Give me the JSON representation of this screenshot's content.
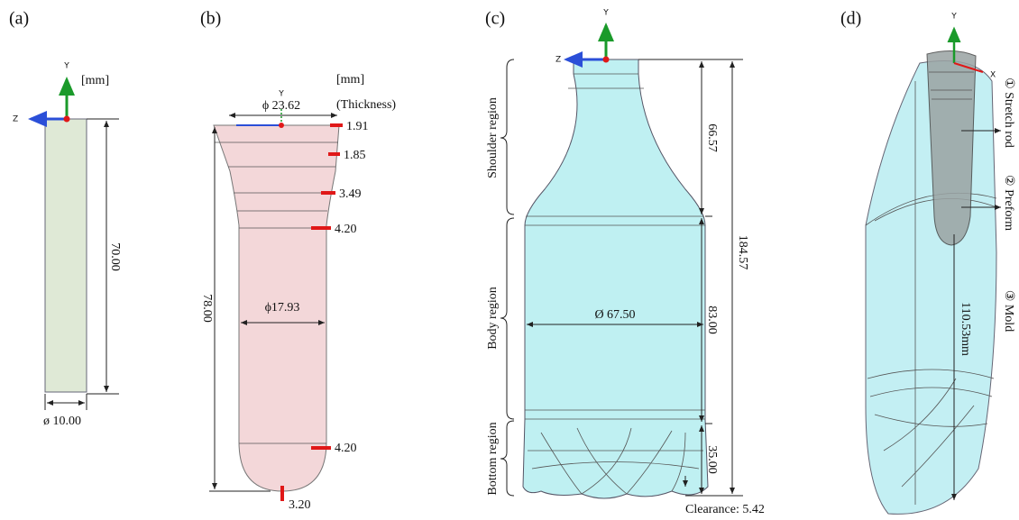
{
  "panels": [
    {
      "label": "(a)",
      "axis_y": "Y",
      "axis_z": "Z",
      "unit": "[mm]",
      "height": "70.00",
      "diameter": "ø 10.00"
    },
    {
      "label": "(b)",
      "axis_y": "Y",
      "unit": "[mm]",
      "thickness_title": "(Thickness)",
      "top_diameter": "ϕ 23.62",
      "thickness": [
        "1.91",
        "1.85",
        "3.49",
        "4.20",
        "4.20",
        "3.20"
      ],
      "height": "78.00",
      "body_diameter": "ϕ17.93"
    },
    {
      "label": "(c)",
      "axis_y": "Y",
      "axis_z": "Z",
      "regions": [
        "Shoulder region",
        "Body region",
        "Bottom region"
      ],
      "shoulder_height": "66.57",
      "total_height": "184.57",
      "body_height": "83.00",
      "diameter": "Ø 67.50",
      "bottom_height": "35.00",
      "clearance": "Clearance: 5.42"
    },
    {
      "label": "(d)",
      "axis_y": "Y",
      "axis_x": "X",
      "parts": [
        "① Stretch rod",
        "② Preform",
        "③ Mold"
      ],
      "depth": "110.53mm"
    }
  ]
}
